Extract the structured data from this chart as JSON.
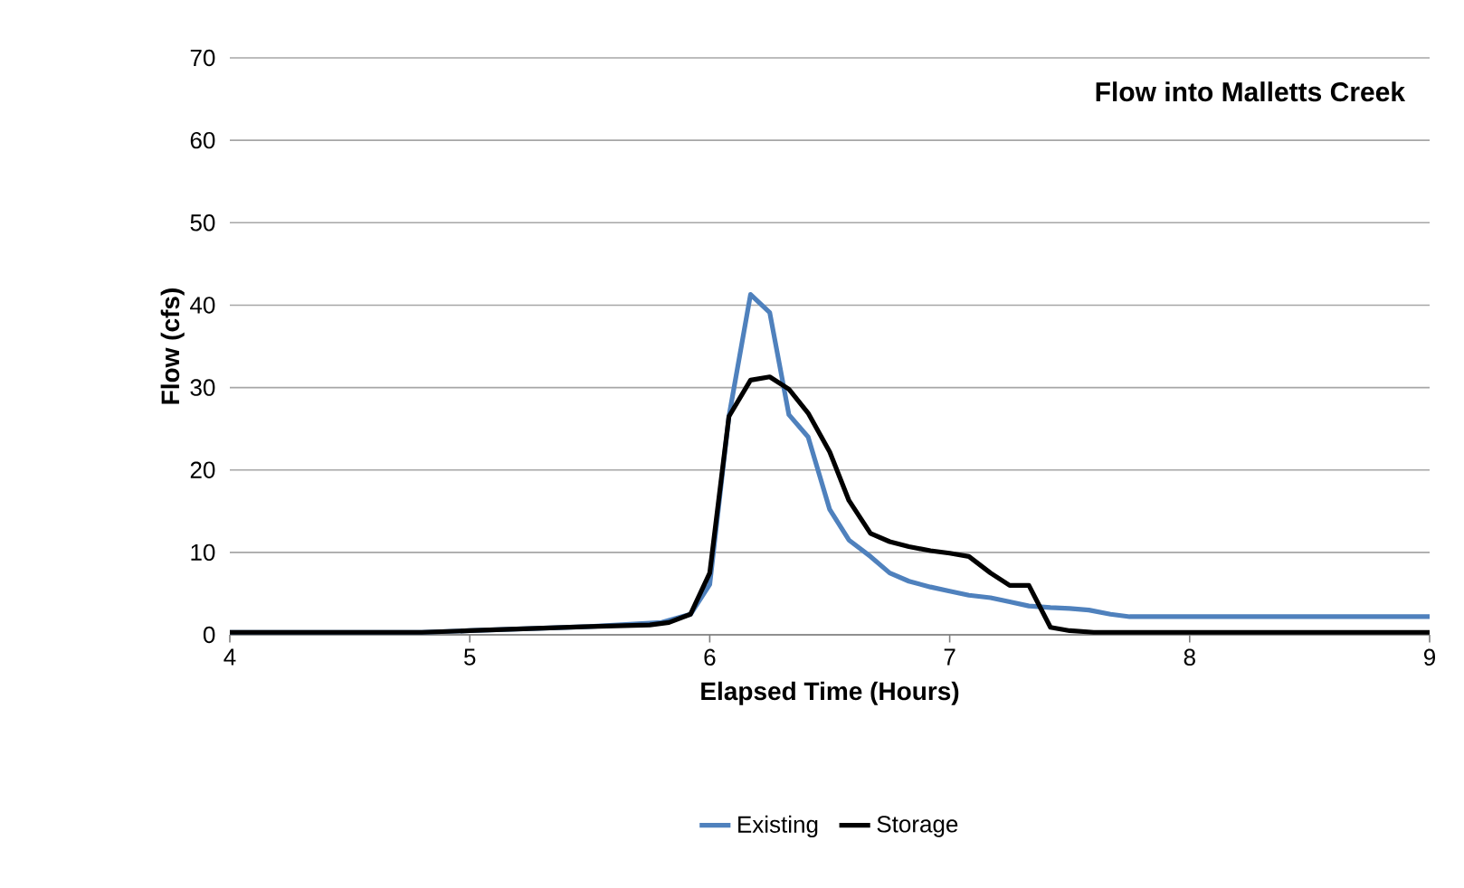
{
  "chart_data": {
    "type": "line",
    "title": "Flow into Malletts Creek",
    "xlabel": "Elapsed Time (Hours)",
    "ylabel": "Flow (cfs)",
    "xlim": [
      4,
      9
    ],
    "xticks": [
      4,
      5,
      6,
      7,
      8,
      9
    ],
    "ylim": [
      0,
      70
    ],
    "yticks": [
      0,
      10,
      20,
      30,
      40,
      50,
      60,
      70
    ],
    "grid": "y",
    "legend": "bottom",
    "marker": "none",
    "line_style": "solid",
    "series": [
      {
        "name": "Existing",
        "color": "#4f81bd",
        "x": [
          4.0,
          4.5,
          4.8,
          5.0,
          5.5,
          5.8,
          5.92,
          6.0,
          6.08,
          6.17,
          6.25,
          6.33,
          6.41,
          6.5,
          6.58,
          6.67,
          6.75,
          6.83,
          6.92,
          7.0,
          7.08,
          7.17,
          7.25,
          7.33,
          7.42,
          7.5,
          7.58,
          7.67,
          7.75,
          7.83,
          9.0
        ],
        "values": [
          0.3,
          0.3,
          0.3,
          0.5,
          1.0,
          1.5,
          2.5,
          6.1,
          26.5,
          41.3,
          39.1,
          26.7,
          24.0,
          15.2,
          11.5,
          9.5,
          7.5,
          6.5,
          5.8,
          5.3,
          4.8,
          4.5,
          4.0,
          3.5,
          3.3,
          3.2,
          3.0,
          2.5,
          2.2,
          2.2,
          2.2
        ]
      },
      {
        "name": "Storage",
        "color": "#000000",
        "x": [
          4.0,
          4.5,
          4.8,
          5.0,
          5.5,
          5.75,
          5.83,
          5.92,
          6.0,
          6.08,
          6.17,
          6.25,
          6.33,
          6.41,
          6.5,
          6.58,
          6.67,
          6.75,
          6.83,
          6.92,
          7.0,
          7.08,
          7.17,
          7.25,
          7.33,
          7.42,
          7.5,
          7.6,
          9.0
        ],
        "values": [
          0.3,
          0.3,
          0.3,
          0.5,
          1.0,
          1.2,
          1.5,
          2.5,
          7.5,
          26.5,
          30.9,
          31.3,
          29.8,
          26.9,
          22.2,
          16.3,
          12.3,
          11.3,
          10.7,
          10.2,
          9.9,
          9.5,
          7.5,
          6.0,
          6.0,
          0.9,
          0.5,
          0.3,
          0.3
        ]
      }
    ]
  }
}
